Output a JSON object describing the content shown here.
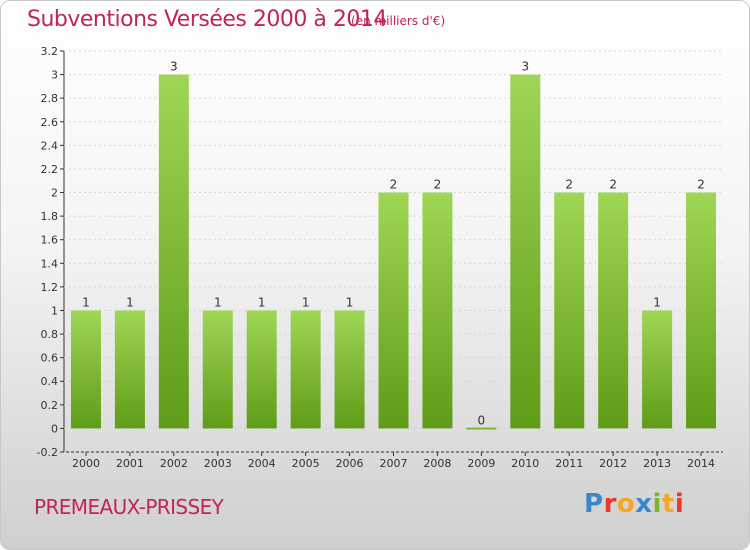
{
  "header": {
    "title": "Subventions Versées 2000 à 2014",
    "unit": "(en milliers d'€)"
  },
  "footer": {
    "town": "PREMEAUX-PRISSEY",
    "logo_text": "Proxiti"
  },
  "colors": {
    "accent": "#c0255a",
    "bar_top": "#9fd656",
    "bar_bottom": "#5f9c18"
  },
  "chart_data": {
    "type": "bar",
    "categories": [
      "2000",
      "2001",
      "2002",
      "2003",
      "2004",
      "2005",
      "2006",
      "2007",
      "2008",
      "2009",
      "2010",
      "2011",
      "2012",
      "2013",
      "2014"
    ],
    "values": [
      1,
      1,
      3,
      1,
      1,
      1,
      1,
      2,
      2,
      0,
      3,
      2,
      2,
      1,
      2
    ],
    "data_labels": [
      "1",
      "1",
      "3",
      "1",
      "1",
      "1",
      "1",
      "2",
      "2",
      "0",
      "3",
      "2",
      "2",
      "1",
      "2"
    ],
    "yticks": [
      "-0.2",
      "0",
      "0.2",
      "0.4",
      "0.6",
      "0.8",
      "1",
      "1.2",
      "1.4",
      "1.6",
      "1.8",
      "2",
      "2.2",
      "2.4",
      "2.6",
      "2.8",
      "3",
      "3.2"
    ],
    "ylim": [
      -0.2,
      3.2
    ],
    "title": "Subventions Versées 2000 à 2014",
    "xlabel": "",
    "ylabel": ""
  }
}
